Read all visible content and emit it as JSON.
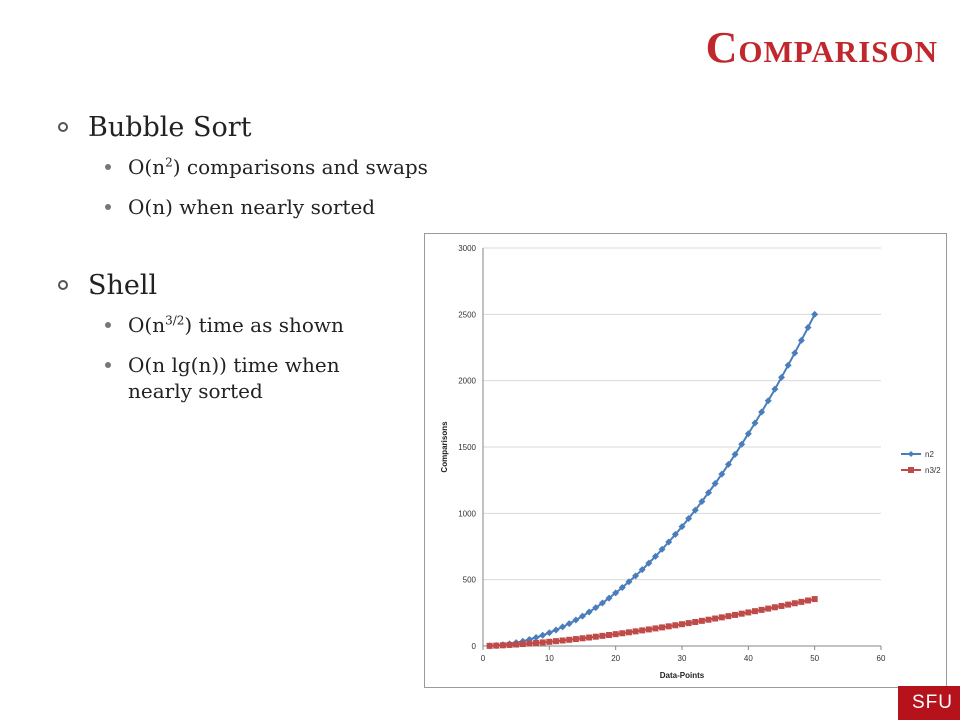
{
  "title": {
    "first": "C",
    "rest": "omparison"
  },
  "bullets": {
    "bubble": {
      "label": "Bubble Sort",
      "sub1_pre": "O(n",
      "sub1_sup": "2",
      "sub1_post": ") comparisons and swaps",
      "sub2": "O(n) when nearly sorted"
    },
    "shell": {
      "label": "Shell",
      "sub1_pre": "O(n",
      "sub1_sup": "3/2",
      "sub1_post": ") time as shown",
      "sub2_line1": "O(n lg(n)) time when",
      "sub2_line2": "nearly sorted"
    }
  },
  "chart_data": {
    "type": "line",
    "xlabel": "Data-Points",
    "ylabel": "Comparisons",
    "xlim": [
      0,
      60
    ],
    "ylim": [
      0,
      3000
    ],
    "xticks": [
      0,
      10,
      20,
      30,
      40,
      50,
      60
    ],
    "yticks": [
      0,
      500,
      1000,
      1500,
      2000,
      2500,
      3000
    ],
    "grid": "horizontal",
    "legend_position": "right",
    "x": [
      1,
      2,
      3,
      4,
      5,
      6,
      7,
      8,
      9,
      10,
      11,
      12,
      13,
      14,
      15,
      16,
      17,
      18,
      19,
      20,
      21,
      22,
      23,
      24,
      25,
      26,
      27,
      28,
      29,
      30,
      31,
      32,
      33,
      34,
      35,
      36,
      37,
      38,
      39,
      40,
      41,
      42,
      43,
      44,
      45,
      46,
      47,
      48,
      49,
      50
    ],
    "series": [
      {
        "name": "n2",
        "color": "#4a7ebb",
        "marker": "diamond",
        "values": [
          1,
          4,
          9,
          16,
          25,
          36,
          49,
          64,
          81,
          100,
          121,
          144,
          169,
          196,
          225,
          256,
          289,
          324,
          361,
          400,
          441,
          484,
          529,
          576,
          625,
          676,
          729,
          784,
          841,
          900,
          961,
          1024,
          1089,
          1156,
          1225,
          1296,
          1369,
          1444,
          1521,
          1600,
          1681,
          1764,
          1849,
          1936,
          2025,
          2116,
          2209,
          2304,
          2401,
          2500
        ]
      },
      {
        "name": "n3/2",
        "color": "#be4b48",
        "marker": "square",
        "values": [
          1.0,
          2.8,
          5.2,
          8.0,
          11.2,
          14.7,
          18.5,
          22.6,
          27.0,
          31.6,
          36.5,
          41.6,
          46.9,
          52.4,
          58.1,
          64.0,
          70.1,
          76.4,
          82.8,
          89.4,
          96.2,
          103.2,
          110.3,
          117.6,
          125.0,
          132.6,
          140.3,
          148.2,
          156.2,
          164.3,
          172.6,
          181.0,
          189.6,
          198.2,
          207.1,
          216.0,
          225.1,
          234.2,
          243.6,
          253.0,
          262.5,
          272.2,
          282.0,
          291.9,
          301.9,
          312.0,
          322.2,
          332.6,
          343.0,
          353.6
        ]
      }
    ]
  },
  "footer": {
    "logo": "SFU",
    "logo_color": "#b5121b"
  },
  "colors": {
    "title": "#c0282d"
  }
}
